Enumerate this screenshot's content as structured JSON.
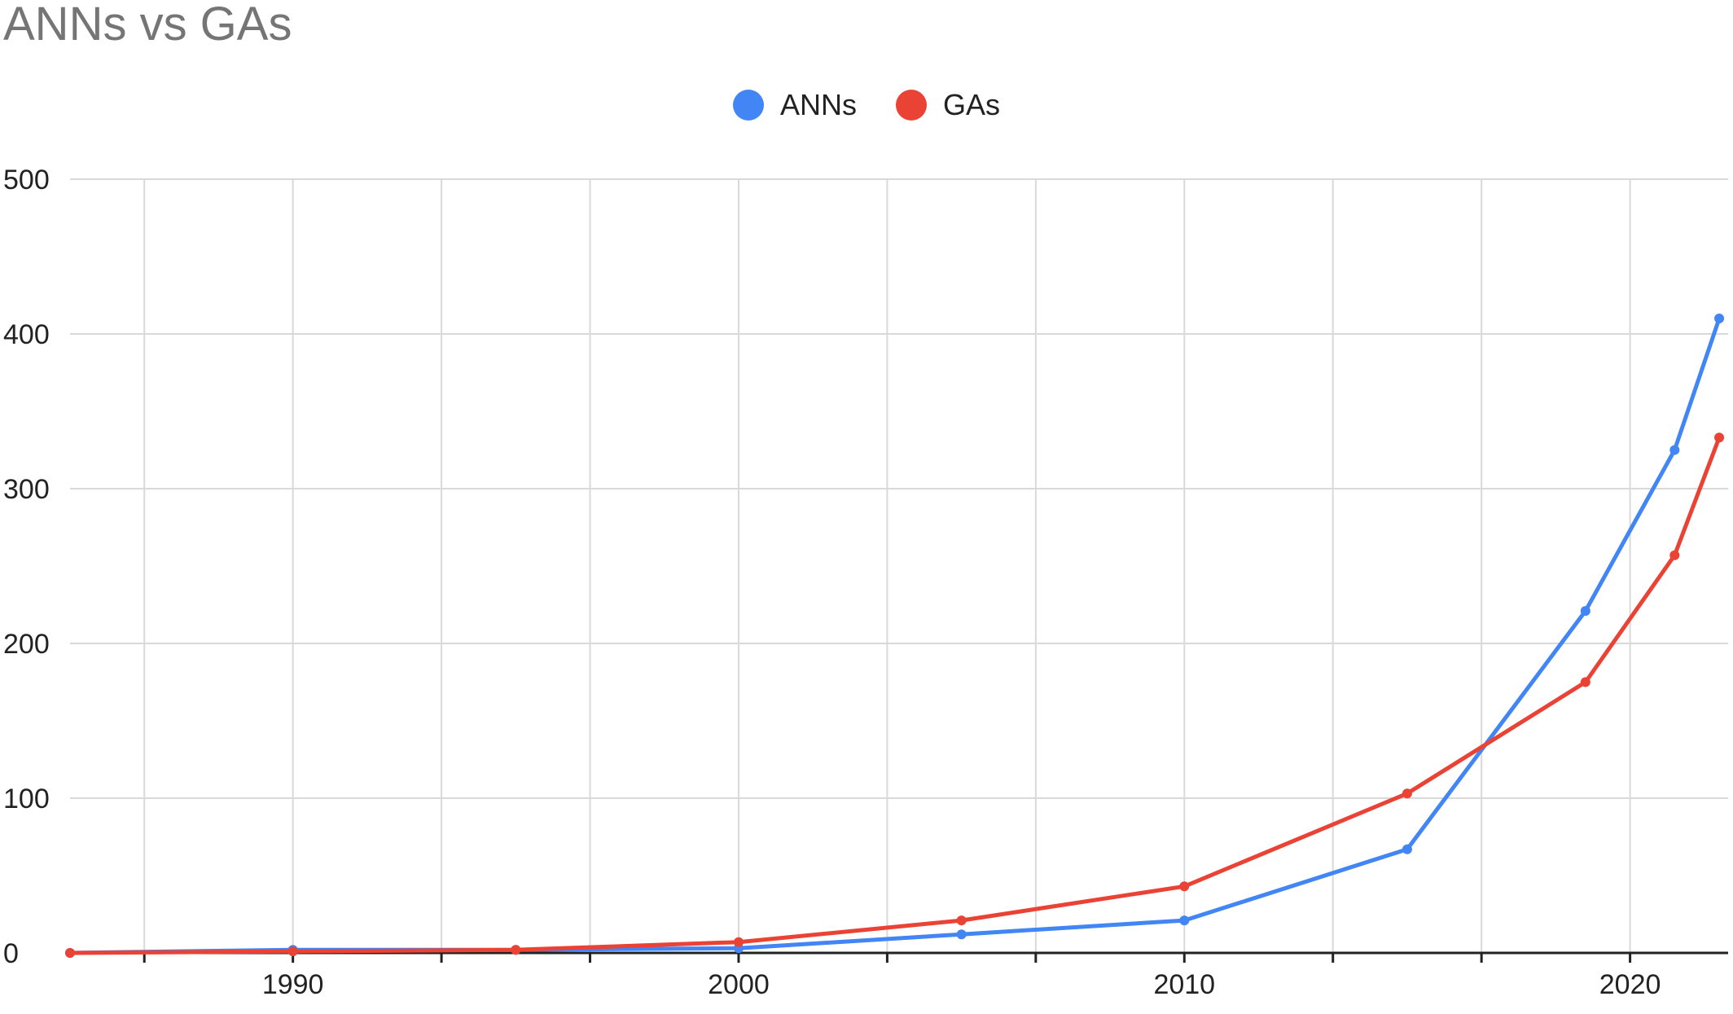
{
  "chart_data": {
    "type": "line",
    "title": "ANNs vs GAs",
    "xlabel": "",
    "ylabel": "",
    "xlim": [
      1985,
      2022.2
    ],
    "ylim": [
      0,
      500
    ],
    "x_ticks": [
      1990,
      2000,
      2010,
      2020
    ],
    "y_ticks": [
      0,
      100,
      200,
      300,
      400,
      500
    ],
    "grid": true,
    "legend_position": "top-center",
    "series": [
      {
        "name": "ANNs",
        "color": "#4285f4",
        "points": [
          [
            1985,
            0
          ],
          [
            1990,
            2
          ],
          [
            1995,
            2
          ],
          [
            2000,
            3
          ],
          [
            2005,
            12
          ],
          [
            2010,
            21
          ],
          [
            2015,
            67
          ],
          [
            2019,
            221
          ],
          [
            2021,
            325
          ],
          [
            2022,
            410
          ]
        ]
      },
      {
        "name": "GAs",
        "color": "#ea4335",
        "points": [
          [
            1985,
            0
          ],
          [
            1990,
            1
          ],
          [
            1995,
            2
          ],
          [
            2000,
            7
          ],
          [
            2005,
            21
          ],
          [
            2010,
            43
          ],
          [
            2015,
            103
          ],
          [
            2019,
            175
          ],
          [
            2021,
            257
          ],
          [
            2022,
            333
          ]
        ]
      }
    ]
  }
}
